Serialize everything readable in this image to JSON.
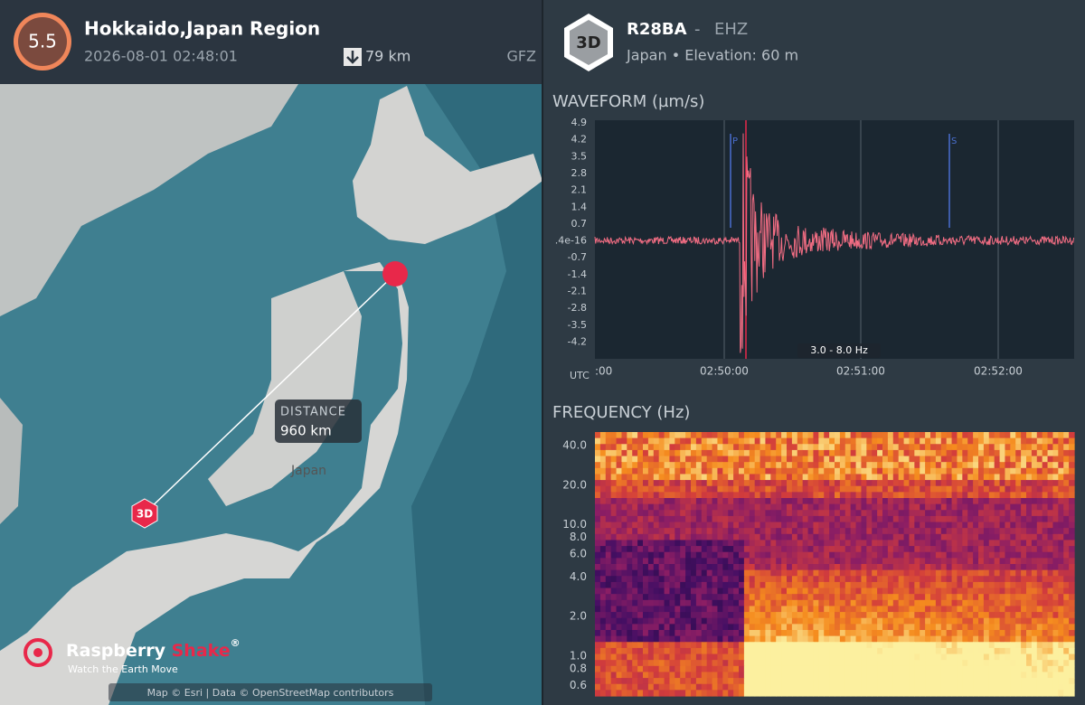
{
  "event": {
    "magnitude": "5.5",
    "region": "Hokkaido,Japan Region",
    "time": "2026-08-01 02:48:01",
    "depth": "79 km",
    "agency": "GFZ"
  },
  "station": {
    "badge": "3D",
    "code": "R28BA",
    "separator": "-",
    "channel": "EHZ",
    "location": "Japan • Elevation: 60 m"
  },
  "map": {
    "distance_label": "DISTANCE",
    "distance": "960 km",
    "country": "Japan",
    "station_marker": "3D",
    "attribution": "Map © Esri | Data © OpenStreetMap contributors",
    "brand_1": "Raspberry",
    "brand_2": "Shake",
    "registered": "®",
    "tagline": "Watch the Earth Move"
  },
  "waveform": {
    "title": "WAVEFORM (µm/s)",
    "yticks": [
      "4.9",
      "4.2",
      "3.5",
      "2.8",
      "2.1",
      "1.4",
      "0.7",
      ".4e-16",
      "-0.7",
      "-1.4",
      "-2.1",
      "-2.8",
      "-3.5",
      "-4.2"
    ],
    "xticks": [
      ":00",
      "02:50:00",
      "02:51:00",
      "02:52:00"
    ],
    "time_zone": "UTC",
    "filter": "3.0 - 8.0 Hz",
    "p_label": "P",
    "s_label": "S"
  },
  "frequency": {
    "title": "FREQUENCY (Hz)",
    "yticks": [
      "40.0",
      "20.0",
      "10.0",
      "8.0",
      "6.0",
      "4.0",
      "2.0",
      "1.0",
      "0.8",
      "0.6"
    ]
  }
}
